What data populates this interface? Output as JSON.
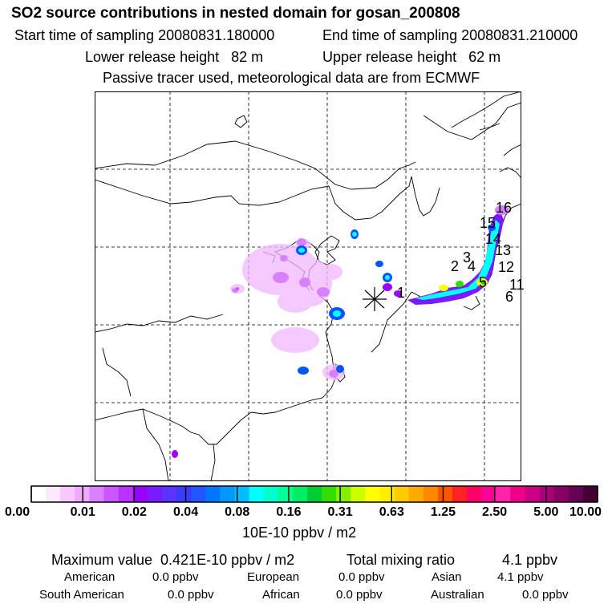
{
  "header": {
    "title": "SO2 source contributions in nested domain for gosan_200808",
    "start_label": "Start time of sampling 20080831.180000",
    "end_label": "End time of sampling 20080831.210000",
    "lower_label": "Lower release height   82 m",
    "upper_label": "Upper release height   62 m",
    "tracer_note": "Passive tracer used, meteorological data are from ECMWF"
  },
  "chart_data": {
    "type": "heatmap",
    "title": "SO2 source contributions in nested domain for gosan_200808",
    "colorbar": {
      "ticks": [
        "0.00",
        "0.01",
        "0.02",
        "0.04",
        "0.08",
        "0.16",
        "0.31",
        "0.63",
        "1.25",
        "2.50",
        "5.00",
        "10.00"
      ],
      "unit_label": "10E-10 ppbv / m2",
      "colors": [
        "#ffffff",
        "#fce8ff",
        "#f7c8ff",
        "#eeaaff",
        "#d880ff",
        "#cc55ff",
        "#b833ff",
        "#9900ff",
        "#7a1aff",
        "#5a33ff",
        "#3b3bff",
        "#2255ff",
        "#0077ff",
        "#0099ff",
        "#00bbff",
        "#00ffff",
        "#00ffcc",
        "#00ff99",
        "#00ee66",
        "#00cc33",
        "#33dd00",
        "#88ee00",
        "#ccff00",
        "#ffff00",
        "#ffee00",
        "#ffcc00",
        "#ffaa00",
        "#ff8800",
        "#ff5500",
        "#ff2222",
        "#ff0066",
        "#ff0099",
        "#ff22aa",
        "#ee0088",
        "#cc0088",
        "#aa0077",
        "#880066",
        "#660055",
        "#440033"
      ]
    },
    "receptor_marker": "*",
    "source_labels": [
      "1",
      "2",
      "3",
      "4",
      "5",
      "6",
      "11",
      "12",
      "13",
      "14",
      "15",
      "16"
    ]
  },
  "stats": {
    "max_label": "Maximum value  0.421E-10 ppbv / m2",
    "total_label": "Total mixing ratio",
    "total_value": "4.1 ppbv",
    "regions": [
      {
        "name": "American",
        "value": "0.0 ppbv"
      },
      {
        "name": "European",
        "value": "0.0 ppbv"
      },
      {
        "name": "Asian",
        "value": "4.1 ppbv"
      },
      {
        "name": "South American",
        "value": "0.0 ppbv"
      },
      {
        "name": "African",
        "value": "0.0 ppbv"
      },
      {
        "name": "Australian",
        "value": "0.0 ppbv"
      }
    ]
  }
}
